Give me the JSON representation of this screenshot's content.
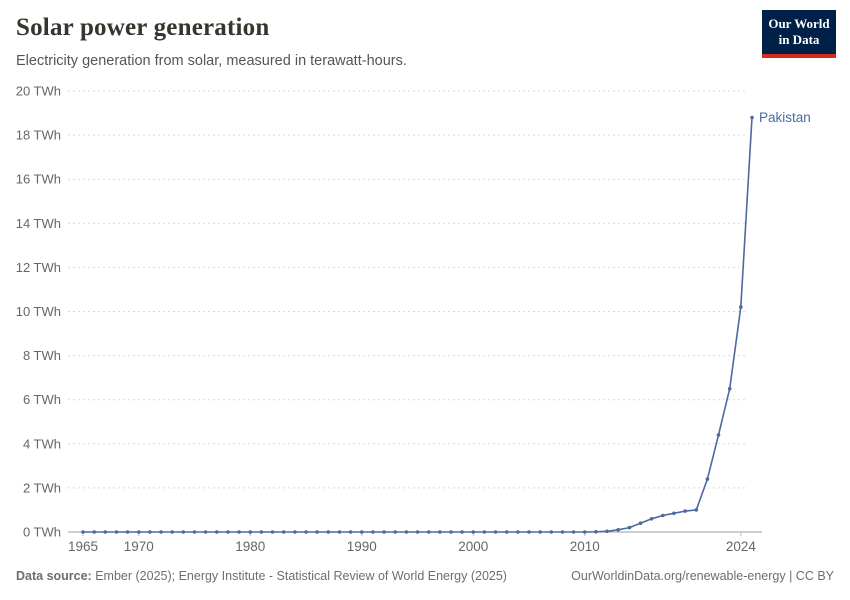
{
  "header": {
    "title": "Solar power generation",
    "subtitle": "Electricity generation from solar, measured in terawatt-hours.",
    "logo": {
      "line1": "Our World",
      "line2": "in Data"
    }
  },
  "chart_data": {
    "type": "line",
    "title": "Solar power generation",
    "ylabel": "terawatt-hours",
    "xlim": [
      1965,
      2025
    ],
    "ylim": [
      0,
      20
    ],
    "y_ticks": [
      0,
      2,
      4,
      6,
      8,
      10,
      12,
      14,
      16,
      18,
      20
    ],
    "y_tick_suffix": " TWh",
    "x_ticks": [
      1965,
      1970,
      1980,
      1990,
      2000,
      2010,
      2024
    ],
    "grid": "horizontal-dashed",
    "legend_position": "end-of-line-label",
    "series": [
      {
        "name": "Pakistan",
        "color": "#4c6a9d",
        "x": [
          1965,
          1966,
          1967,
          1968,
          1969,
          1970,
          1971,
          1972,
          1973,
          1974,
          1975,
          1976,
          1977,
          1978,
          1979,
          1980,
          1981,
          1982,
          1983,
          1984,
          1985,
          1986,
          1987,
          1988,
          1989,
          1990,
          1991,
          1992,
          1993,
          1994,
          1995,
          1996,
          1997,
          1998,
          1999,
          2000,
          2001,
          2002,
          2003,
          2004,
          2005,
          2006,
          2007,
          2008,
          2009,
          2010,
          2011,
          2012,
          2013,
          2014,
          2015,
          2016,
          2017,
          2018,
          2019,
          2020,
          2021,
          2022,
          2023,
          2024,
          2025
        ],
        "values": [
          0,
          0,
          0,
          0,
          0,
          0,
          0,
          0,
          0,
          0,
          0,
          0,
          0,
          0,
          0,
          0,
          0,
          0,
          0,
          0,
          0,
          0,
          0,
          0,
          0,
          0,
          0,
          0,
          0,
          0,
          0,
          0,
          0,
          0,
          0,
          0,
          0,
          0,
          0,
          0,
          0,
          0,
          0,
          0,
          0,
          0,
          0.01,
          0.03,
          0.1,
          0.2,
          0.4,
          0.6,
          0.75,
          0.85,
          0.95,
          1.0,
          2.4,
          4.4,
          6.5,
          10.2,
          18.8
        ]
      }
    ]
  },
  "footer": {
    "source_label": "Data source:",
    "source_text": " Ember (2025); Energy Institute - Statistical Review of World Energy (2025)",
    "link_text": "OurWorldinData.org/renewable-energy | CC BY"
  },
  "colors": {
    "brand_navy": "#002147",
    "brand_red": "#d42a20",
    "series_blue": "#4c6a9d",
    "grid": "#d9d9d9",
    "axis": "#9e9e9e",
    "tick_label": "#666666"
  }
}
